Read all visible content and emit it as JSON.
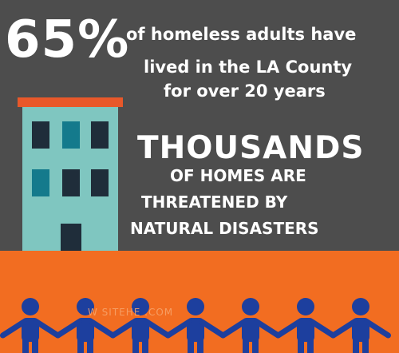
{
  "stat": {
    "percent": "65%",
    "line1": "of homeless adults have",
    "line2": "lived in the LA County",
    "line3": "for over 20 years"
  },
  "headline": {
    "title": "THOUSANDS",
    "line1": "OF HOMES ARE",
    "line2": "THREATENED BY",
    "line3": "NATURAL DISASTERS"
  },
  "watermark": "W    SITEHE    .COM",
  "colors": {
    "background": "#4d4d4d",
    "ground": "#f26d21",
    "building": "#7fc6c0",
    "roof": "#e8582a",
    "window": "#1f2d3a",
    "people": "#1d3f9e"
  },
  "people_count": 7
}
